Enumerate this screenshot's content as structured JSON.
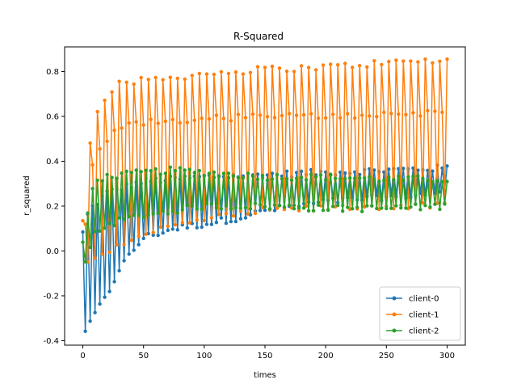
{
  "chart_data": {
    "type": "line",
    "title": "R-Squared",
    "xlabel": "times",
    "ylabel": "r_squared",
    "xlim": [
      -15,
      315
    ],
    "ylim": [
      -0.42,
      0.91
    ],
    "x_ticks": [
      0,
      50,
      100,
      150,
      200,
      250,
      300
    ],
    "x_tick_labels": [
      "0",
      "50",
      "100",
      "150",
      "200",
      "250",
      "300"
    ],
    "y_ticks": [
      -0.4,
      -0.2,
      0.0,
      0.2,
      0.4,
      0.6,
      0.8
    ],
    "y_tick_labels": [
      "-0.4",
      "-0.2",
      "0.0",
      "0.2",
      "0.4",
      "0.6",
      "0.8"
    ],
    "grid": false,
    "legend_position": "bottom-right",
    "x_range": [
      0,
      300
    ],
    "marker": "circle",
    "series": [
      {
        "name": "client-0",
        "color": "#1f77b4",
        "pattern": "alternating envelope",
        "upper_envelope": [
          [
            0,
            0.08
          ],
          [
            5,
            0.18
          ],
          [
            20,
            0.26
          ],
          [
            50,
            0.31
          ],
          [
            100,
            0.33
          ],
          [
            150,
            0.34
          ],
          [
            200,
            0.35
          ],
          [
            250,
            0.36
          ],
          [
            300,
            0.37
          ]
        ],
        "lower_envelope": [
          [
            0,
            -0.36
          ],
          [
            5,
            -0.34
          ],
          [
            10,
            -0.28
          ],
          [
            20,
            -0.2
          ],
          [
            30,
            -0.08
          ],
          [
            50,
            0.06
          ],
          [
            75,
            0.1
          ],
          [
            100,
            0.12
          ],
          [
            130,
            0.15
          ],
          [
            150,
            0.18
          ],
          [
            200,
            0.22
          ],
          [
            250,
            0.24
          ],
          [
            300,
            0.26
          ]
        ]
      },
      {
        "name": "client-1",
        "color": "#ff7f0e",
        "pattern": "three-level cycle",
        "upper_envelope": [
          [
            0,
            0.14
          ],
          [
            5,
            0.46
          ],
          [
            10,
            0.62
          ],
          [
            20,
            0.7
          ],
          [
            30,
            0.75
          ],
          [
            50,
            0.76
          ],
          [
            100,
            0.79
          ],
          [
            150,
            0.81
          ],
          [
            200,
            0.82
          ],
          [
            250,
            0.84
          ],
          [
            300,
            0.85
          ]
        ],
        "middle_envelope": [
          [
            0,
            0.0
          ],
          [
            5,
            0.3
          ],
          [
            10,
            0.42
          ],
          [
            20,
            0.5
          ],
          [
            30,
            0.55
          ],
          [
            50,
            0.57
          ],
          [
            100,
            0.59
          ],
          [
            150,
            0.6
          ],
          [
            200,
            0.6
          ],
          [
            250,
            0.61
          ],
          [
            300,
            0.62
          ]
        ],
        "lower_envelope": [
          [
            0,
            -0.08
          ],
          [
            5,
            -0.04
          ],
          [
            20,
            0.0
          ],
          [
            50,
            0.08
          ],
          [
            75,
            0.11
          ],
          [
            100,
            0.14
          ],
          [
            150,
            0.18
          ],
          [
            200,
            0.19
          ],
          [
            250,
            0.2
          ],
          [
            300,
            0.2
          ]
        ]
      },
      {
        "name": "client-2",
        "color": "#2ca02c",
        "pattern": "alternating envelope",
        "upper_envelope": [
          [
            0,
            0.04
          ],
          [
            5,
            0.2
          ],
          [
            10,
            0.32
          ],
          [
            20,
            0.33
          ],
          [
            50,
            0.35
          ],
          [
            75,
            0.36
          ],
          [
            100,
            0.35
          ],
          [
            150,
            0.33
          ],
          [
            200,
            0.33
          ],
          [
            250,
            0.32
          ],
          [
            300,
            0.32
          ]
        ],
        "lower_envelope": [
          [
            0,
            -0.09
          ],
          [
            5,
            0.0
          ],
          [
            10,
            0.08
          ],
          [
            20,
            0.12
          ],
          [
            50,
            0.16
          ],
          [
            75,
            0.18
          ],
          [
            100,
            0.2
          ],
          [
            150,
            0.2
          ],
          [
            200,
            0.19
          ],
          [
            250,
            0.19
          ],
          [
            300,
            0.2
          ]
        ]
      }
    ]
  }
}
